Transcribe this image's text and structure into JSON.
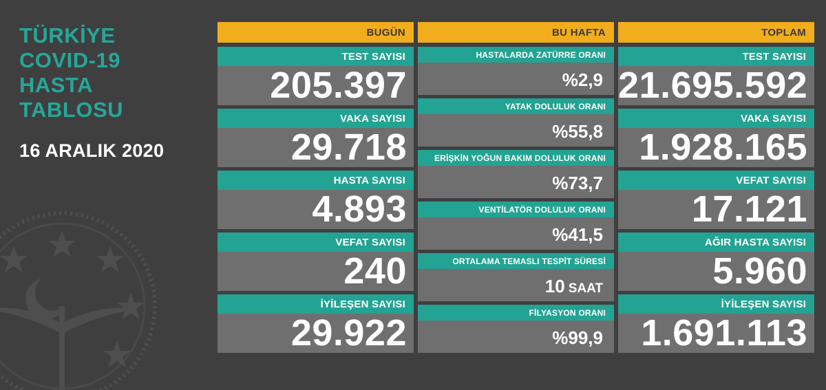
{
  "title_lines": [
    "TÜRKİYE",
    "COVID-19",
    "HASTA",
    "TABLOSU"
  ],
  "date": "16 ARALIK 2020",
  "colors": {
    "background": "#3f3f3f",
    "header": "#f2ad1c",
    "label": "#23a393",
    "value_box": "#6f6f6f",
    "title": "#26a79a"
  },
  "emblem_icon": "ministry-of-health-emblem",
  "today": {
    "header": "BUGÜN",
    "items": [
      {
        "label": "TEST SAYISI",
        "value": "205.397"
      },
      {
        "label": "VAKA SAYISI",
        "value": "29.718"
      },
      {
        "label": "HASTA SAYISI",
        "value": "4.893"
      },
      {
        "label": "VEFAT SAYISI",
        "value": "240"
      },
      {
        "label": "İYİLEŞEN SAYISI",
        "value": "29.922"
      }
    ]
  },
  "week": {
    "header": "BU HAFTA",
    "items": [
      {
        "label": "HASTALARDA ZATÜRRE ORANI",
        "value": "%2,9"
      },
      {
        "label": "YATAK DOLULUK ORANI",
        "value": "%55,8"
      },
      {
        "label": "ERİŞKİN YOĞUN BAKIM DOLULUK ORANI",
        "value": "%73,7"
      },
      {
        "label": "VENTİLATÖR DOLULUK ORANI",
        "value": "%41,5"
      },
      {
        "label": "ORTALAMA TEMASLI TESPİT SÜRESİ",
        "value": "10",
        "unit": "SAAT"
      },
      {
        "label": "FİLYASYON ORANI",
        "value": "%99,9"
      }
    ]
  },
  "total": {
    "header": "TOPLAM",
    "items": [
      {
        "label": "TEST SAYISI",
        "value": "21.695.592"
      },
      {
        "label": "VAKA SAYISI",
        "value": "1.928.165"
      },
      {
        "label": "VEFAT SAYISI",
        "value": "17.121"
      },
      {
        "label": "AĞIR HASTA SAYISI",
        "value": "5.960"
      },
      {
        "label": "İYİLEŞEN SAYISI",
        "value": "1.691.113"
      }
    ]
  }
}
